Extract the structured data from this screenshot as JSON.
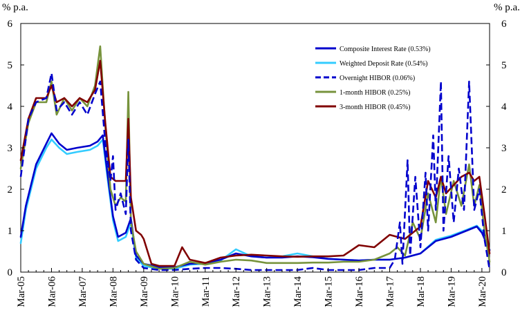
{
  "chart_data": {
    "type": "line",
    "title": "",
    "ylabel_left": "% p.a.",
    "ylabel_right": "% p.a.",
    "xlabel": "",
    "ylim": [
      0,
      6
    ],
    "yticks": [
      "0",
      "1",
      "2",
      "3",
      "4",
      "5",
      "6"
    ],
    "xticks": [
      "Mar-05",
      "Mar-06",
      "Mar-07",
      "Mar-08",
      "Mar-09",
      "Mar-10",
      "Mar-11",
      "Mar-12",
      "Mar-13",
      "Mar-14",
      "Mar-15",
      "Mar-16",
      "Mar-17",
      "Mar-18",
      "Mar-19",
      "Mar-20"
    ],
    "xrange": [
      "Mar-05",
      "Jun-20"
    ],
    "grid": false,
    "legend_position": "top-right",
    "series": [
      {
        "name": "Composite Interest Rate (0.53%)",
        "color": "#0000cc",
        "style": "solid",
        "points": [
          [
            "Mar-05",
            0.85
          ],
          [
            "May-05",
            1.6
          ],
          [
            "Sep-05",
            2.6
          ],
          [
            "Jan-06",
            3.1
          ],
          [
            "Mar-06",
            3.35
          ],
          [
            "Jun-06",
            3.1
          ],
          [
            "Sep-06",
            2.95
          ],
          [
            "Jan-07",
            3.0
          ],
          [
            "Jun-07",
            3.05
          ],
          [
            "Sep-07",
            3.15
          ],
          [
            "Nov-07",
            3.3
          ],
          [
            "Jan-08",
            2.3
          ],
          [
            "Mar-08",
            1.35
          ],
          [
            "May-08",
            0.85
          ],
          [
            "Aug-08",
            0.95
          ],
          [
            "Oct-08",
            1.3
          ],
          [
            "Dec-08",
            0.4
          ],
          [
            "Mar-09",
            0.2
          ],
          [
            "Sep-09",
            0.12
          ],
          [
            "Mar-10",
            0.12
          ],
          [
            "Sep-10",
            0.2
          ],
          [
            "Mar-11",
            0.22
          ],
          [
            "Sep-11",
            0.3
          ],
          [
            "Mar-12",
            0.45
          ],
          [
            "Sep-12",
            0.38
          ],
          [
            "Mar-13",
            0.35
          ],
          [
            "Sep-13",
            0.35
          ],
          [
            "Mar-14",
            0.38
          ],
          [
            "Sep-14",
            0.36
          ],
          [
            "Mar-15",
            0.32
          ],
          [
            "Sep-15",
            0.3
          ],
          [
            "Mar-16",
            0.28
          ],
          [
            "Sep-16",
            0.3
          ],
          [
            "Mar-17",
            0.3
          ],
          [
            "Sep-17",
            0.35
          ],
          [
            "Mar-18",
            0.45
          ],
          [
            "Sep-18",
            0.75
          ],
          [
            "Mar-19",
            0.85
          ],
          [
            "Sep-19",
            1.0
          ],
          [
            "Jan-20",
            1.1
          ],
          [
            "Mar-20",
            0.95
          ],
          [
            "Jun-20",
            0.53
          ]
        ]
      },
      {
        "name": "Weighted Deposit Rate (0.54%)",
        "color": "#33ccff",
        "style": "solid",
        "points": [
          [
            "Mar-05",
            0.7
          ],
          [
            "May-05",
            1.5
          ],
          [
            "Sep-05",
            2.5
          ],
          [
            "Jan-06",
            3.0
          ],
          [
            "Mar-06",
            3.2
          ],
          [
            "Jun-06",
            3.0
          ],
          [
            "Sep-06",
            2.85
          ],
          [
            "Jan-07",
            2.9
          ],
          [
            "Jun-07",
            2.95
          ],
          [
            "Sep-07",
            3.05
          ],
          [
            "Nov-07",
            3.2
          ],
          [
            "Jan-08",
            2.2
          ],
          [
            "Mar-08",
            1.25
          ],
          [
            "May-08",
            0.75
          ],
          [
            "Aug-08",
            0.85
          ],
          [
            "Oct-08",
            1.2
          ],
          [
            "Dec-08",
            0.35
          ],
          [
            "Mar-09",
            0.15
          ],
          [
            "Sep-09",
            0.08
          ],
          [
            "Mar-10",
            0.08
          ],
          [
            "Sep-10",
            0.18
          ],
          [
            "Mar-11",
            0.2
          ],
          [
            "Sep-11",
            0.28
          ],
          [
            "Mar-12",
            0.55
          ],
          [
            "Sep-12",
            0.38
          ],
          [
            "Mar-13",
            0.35
          ],
          [
            "Sep-13",
            0.38
          ],
          [
            "Mar-14",
            0.45
          ],
          [
            "Sep-14",
            0.38
          ],
          [
            "Mar-15",
            0.32
          ],
          [
            "Sep-15",
            0.3
          ],
          [
            "Mar-16",
            0.28
          ],
          [
            "Sep-16",
            0.3
          ],
          [
            "Mar-17",
            0.3
          ],
          [
            "Sep-17",
            0.35
          ],
          [
            "Mar-18",
            0.45
          ],
          [
            "Sep-18",
            0.78
          ],
          [
            "Mar-19",
            0.88
          ],
          [
            "Sep-19",
            1.02
          ],
          [
            "Jan-20",
            1.12
          ],
          [
            "Mar-20",
            1.0
          ],
          [
            "Jun-20",
            0.54
          ]
        ]
      },
      {
        "name": "Overnight HIBOR (0.06%)",
        "color": "#0000cc",
        "style": "dashed",
        "points": [
          [
            "Mar-05",
            2.3
          ],
          [
            "Jun-05",
            3.7
          ],
          [
            "Sep-05",
            4.1
          ],
          [
            "Jan-06",
            4.2
          ],
          [
            "Mar-06",
            4.8
          ],
          [
            "May-06",
            3.9
          ],
          [
            "Aug-06",
            4.1
          ],
          [
            "Nov-06",
            3.8
          ],
          [
            "Feb-07",
            4.1
          ],
          [
            "May-07",
            3.8
          ],
          [
            "Aug-07",
            4.3
          ],
          [
            "Oct-07",
            4.6
          ],
          [
            "Dec-07",
            3.1
          ],
          [
            "Feb-08",
            2.2
          ],
          [
            "Mar-08",
            2.8
          ],
          [
            "Apr-08",
            1.5
          ],
          [
            "Jun-08",
            1.9
          ],
          [
            "Aug-08",
            1.4
          ],
          [
            "Sep-08",
            3.2
          ],
          [
            "Oct-08",
            1.0
          ],
          [
            "Dec-08",
            0.3
          ],
          [
            "Mar-09",
            0.1
          ],
          [
            "Sep-09",
            0.05
          ],
          [
            "Mar-10",
            0.05
          ],
          [
            "Sep-10",
            0.08
          ],
          [
            "Mar-11",
            0.1
          ],
          [
            "Sep-11",
            0.1
          ],
          [
            "Mar-12",
            0.08
          ],
          [
            "Sep-12",
            0.05
          ],
          [
            "Mar-13",
            0.05
          ],
          [
            "Sep-13",
            0.05
          ],
          [
            "Mar-14",
            0.05
          ],
          [
            "Sep-14",
            0.1
          ],
          [
            "Mar-15",
            0.05
          ],
          [
            "Sep-15",
            0.05
          ],
          [
            "Mar-16",
            0.05
          ],
          [
            "Sep-16",
            0.1
          ],
          [
            "Mar-17",
            0.1
          ],
          [
            "May-17",
            0.3
          ],
          [
            "Jul-17",
            1.2
          ],
          [
            "Aug-17",
            0.2
          ],
          [
            "Oct-17",
            2.7
          ],
          [
            "Nov-17",
            0.4
          ],
          [
            "Jan-18",
            2.3
          ],
          [
            "Mar-18",
            0.6
          ],
          [
            "May-18",
            2.4
          ],
          [
            "Jun-18",
            1.0
          ],
          [
            "Aug-18",
            3.3
          ],
          [
            "Sep-18",
            1.5
          ],
          [
            "Nov-18",
            4.6
          ],
          [
            "Dec-18",
            1.0
          ],
          [
            "Feb-19",
            2.8
          ],
          [
            "Apr-19",
            1.2
          ],
          [
            "Jun-19",
            2.5
          ],
          [
            "Aug-19",
            1.5
          ],
          [
            "Oct-19",
            4.6
          ],
          [
            "Dec-19",
            1.5
          ],
          [
            "Feb-20",
            2.0
          ],
          [
            "Apr-20",
            0.8
          ],
          [
            "Jun-20",
            0.06
          ]
        ]
      },
      {
        "name": "1-month HIBOR (0.25%)",
        "color": "#77933c",
        "style": "solid",
        "points": [
          [
            "Mar-05",
            2.5
          ],
          [
            "Jun-05",
            3.6
          ],
          [
            "Sep-05",
            4.1
          ],
          [
            "Jan-06",
            4.1
          ],
          [
            "Mar-06",
            4.6
          ],
          [
            "May-06",
            3.8
          ],
          [
            "Aug-06",
            4.2
          ],
          [
            "Nov-06",
            3.9
          ],
          [
            "Feb-07",
            4.2
          ],
          [
            "May-07",
            4.0
          ],
          [
            "Aug-07",
            4.5
          ],
          [
            "Oct-07",
            5.45
          ],
          [
            "Dec-07",
            3.5
          ],
          [
            "Feb-08",
            2.0
          ],
          [
            "Apr-08",
            1.6
          ],
          [
            "Jun-08",
            1.8
          ],
          [
            "Aug-08",
            1.7
          ],
          [
            "Sep-08",
            4.35
          ],
          [
            "Oct-08",
            1.2
          ],
          [
            "Dec-08",
            0.5
          ],
          [
            "Mar-09",
            0.2
          ],
          [
            "Sep-09",
            0.08
          ],
          [
            "Mar-10",
            0.1
          ],
          [
            "Sep-10",
            0.25
          ],
          [
            "Mar-11",
            0.18
          ],
          [
            "Sep-11",
            0.25
          ],
          [
            "Mar-12",
            0.3
          ],
          [
            "Sep-12",
            0.28
          ],
          [
            "Mar-13",
            0.22
          ],
          [
            "Sep-13",
            0.22
          ],
          [
            "Mar-14",
            0.22
          ],
          [
            "Sep-14",
            0.23
          ],
          [
            "Mar-15",
            0.23
          ],
          [
            "Sep-15",
            0.25
          ],
          [
            "Mar-16",
            0.25
          ],
          [
            "Sep-16",
            0.3
          ],
          [
            "Mar-17",
            0.45
          ],
          [
            "Jun-17",
            0.6
          ],
          [
            "Sep-17",
            0.4
          ],
          [
            "Dec-17",
            1.2
          ],
          [
            "Mar-18",
            0.8
          ],
          [
            "Jun-18",
            1.9
          ],
          [
            "Sep-18",
            1.2
          ],
          [
            "Nov-18",
            2.3
          ],
          [
            "Jan-19",
            1.4
          ],
          [
            "Apr-19",
            2.2
          ],
          [
            "Jul-19",
            1.6
          ],
          [
            "Oct-19",
            2.6
          ],
          [
            "Dec-19",
            1.6
          ],
          [
            "Feb-20",
            2.1
          ],
          [
            "Apr-20",
            1.0
          ],
          [
            "Jun-20",
            0.25
          ]
        ]
      },
      {
        "name": "3-month HIBOR (0.45%)",
        "color": "#800000",
        "style": "solid",
        "points": [
          [
            "Mar-05",
            2.7
          ],
          [
            "Jun-05",
            3.7
          ],
          [
            "Sep-05",
            4.2
          ],
          [
            "Jan-06",
            4.2
          ],
          [
            "Mar-06",
            4.5
          ],
          [
            "May-06",
            4.1
          ],
          [
            "Aug-06",
            4.2
          ],
          [
            "Nov-06",
            4.0
          ],
          [
            "Feb-07",
            4.2
          ],
          [
            "May-07",
            4.1
          ],
          [
            "Aug-07",
            4.4
          ],
          [
            "Oct-07",
            5.1
          ],
          [
            "Dec-07",
            3.6
          ],
          [
            "Feb-08",
            2.3
          ],
          [
            "Apr-08",
            2.2
          ],
          [
            "Jun-08",
            2.2
          ],
          [
            "Aug-08",
            2.2
          ],
          [
            "Sep-08",
            3.7
          ],
          [
            "Oct-08",
            1.8
          ],
          [
            "Dec-08",
            1.0
          ],
          [
            "Feb-09",
            0.9
          ],
          [
            "Mar-09",
            0.8
          ],
          [
            "Jun-09",
            0.2
          ],
          [
            "Sep-09",
            0.15
          ],
          [
            "Mar-10",
            0.15
          ],
          [
            "Jun-10",
            0.6
          ],
          [
            "Sep-10",
            0.3
          ],
          [
            "Mar-11",
            0.22
          ],
          [
            "Sep-11",
            0.35
          ],
          [
            "Mar-12",
            0.4
          ],
          [
            "Sep-12",
            0.42
          ],
          [
            "Mar-13",
            0.4
          ],
          [
            "Sep-13",
            0.38
          ],
          [
            "Mar-14",
            0.37
          ],
          [
            "Sep-14",
            0.38
          ],
          [
            "Mar-15",
            0.38
          ],
          [
            "Sep-15",
            0.4
          ],
          [
            "Mar-16",
            0.65
          ],
          [
            "Sep-16",
            0.6
          ],
          [
            "Mar-17",
            0.9
          ],
          [
            "Sep-17",
            0.8
          ],
          [
            "Mar-18",
            1.1
          ],
          [
            "Jun-18",
            2.2
          ],
          [
            "Sep-18",
            1.8
          ],
          [
            "Nov-18",
            2.3
          ],
          [
            "Jan-19",
            1.9
          ],
          [
            "Apr-19",
            2.1
          ],
          [
            "Jul-19",
            2.3
          ],
          [
            "Oct-19",
            2.4
          ],
          [
            "Dec-19",
            2.2
          ],
          [
            "Feb-20",
            2.3
          ],
          [
            "Apr-20",
            1.4
          ],
          [
            "Jun-20",
            0.45
          ]
        ]
      }
    ]
  }
}
